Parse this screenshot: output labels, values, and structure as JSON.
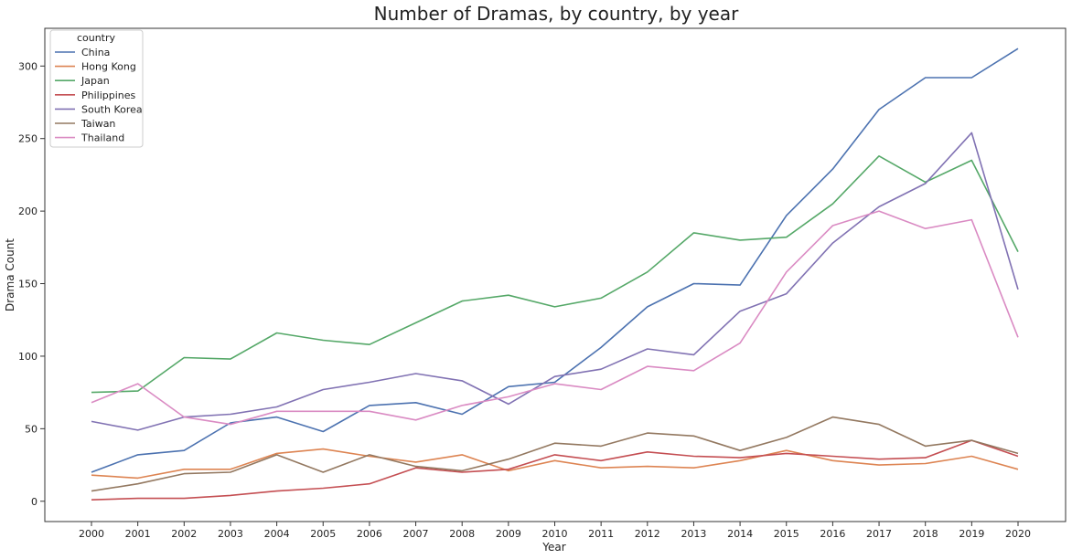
{
  "chart_data": {
    "type": "line",
    "title": "Number of Dramas, by country, by year",
    "xlabel": "Year",
    "ylabel": "Drama Count",
    "x": [
      2000,
      2001,
      2002,
      2003,
      2004,
      2005,
      2006,
      2007,
      2008,
      2009,
      2010,
      2011,
      2012,
      2013,
      2014,
      2015,
      2016,
      2017,
      2018,
      2019,
      2020
    ],
    "yticks": [
      0,
      50,
      100,
      150,
      200,
      250,
      300
    ],
    "ylim": [
      -14,
      326
    ],
    "grid": false,
    "legend": {
      "title": "country",
      "placement": "top-left"
    },
    "series": [
      {
        "name": "China",
        "color": "#4c72b0",
        "values": [
          20,
          32,
          35,
          54,
          58,
          48,
          66,
          68,
          60,
          79,
          82,
          106,
          134,
          150,
          149,
          197,
          229,
          270,
          292,
          292,
          312
        ]
      },
      {
        "name": "Hong Kong",
        "color": "#dd8452",
        "values": [
          18,
          16,
          22,
          22,
          33,
          36,
          31,
          27,
          32,
          21,
          28,
          23,
          24,
          23,
          28,
          35,
          28,
          25,
          26,
          31,
          22
        ]
      },
      {
        "name": "Japan",
        "color": "#55a868",
        "values": [
          75,
          76,
          99,
          98,
          116,
          111,
          108,
          123,
          138,
          142,
          134,
          140,
          158,
          185,
          180,
          182,
          205,
          238,
          220,
          235,
          172
        ]
      },
      {
        "name": "Philippines",
        "color": "#c44e52",
        "values": [
          1,
          2,
          2,
          4,
          7,
          9,
          12,
          23,
          20,
          22,
          32,
          28,
          34,
          31,
          30,
          33,
          31,
          29,
          30,
          42,
          31
        ]
      },
      {
        "name": "South Korea",
        "color": "#8172b3",
        "values": [
          55,
          49,
          58,
          60,
          65,
          77,
          82,
          88,
          83,
          67,
          86,
          91,
          105,
          101,
          131,
          143,
          178,
          203,
          219,
          254,
          146
        ]
      },
      {
        "name": "Taiwan",
        "color": "#937860",
        "values": [
          7,
          12,
          19,
          20,
          32,
          20,
          32,
          24,
          21,
          29,
          40,
          38,
          47,
          45,
          35,
          44,
          58,
          53,
          38,
          42,
          33
        ]
      },
      {
        "name": "Thailand",
        "color": "#da8bc3",
        "values": [
          68,
          81,
          58,
          53,
          62,
          62,
          62,
          56,
          66,
          72,
          81,
          77,
          93,
          90,
          109,
          158,
          190,
          200,
          188,
          194,
          113
        ]
      }
    ]
  }
}
